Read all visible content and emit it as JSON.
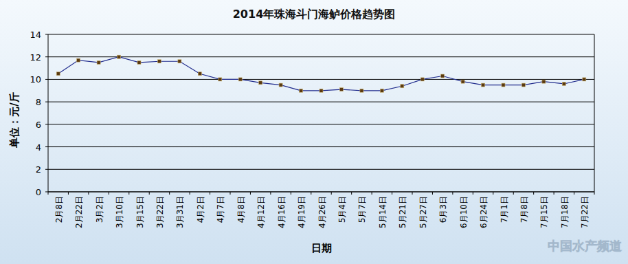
{
  "chart_data": {
    "type": "line",
    "title": "2014年珠海斗门海鲈价格趋势图",
    "x_label": "日期",
    "y_label": "单位：元/斤",
    "annotations": [
      "中国水产频道"
    ],
    "categories": [
      "2月8日",
      "2月22日",
      "3月2日",
      "3月10日",
      "3月15日",
      "3月22日",
      "3月31日",
      "4月2日",
      "4月7日",
      "4月8日",
      "4月12日",
      "4月16日",
      "4月19日",
      "4月26日",
      "5月4日",
      "5月7日",
      "5月14日",
      "5月21日",
      "5月27日",
      "6月3日",
      "6月10日",
      "6月24日",
      "7月1日",
      "7月8日",
      "7月15日",
      "7月18日",
      "7月22日"
    ],
    "series": [
      {
        "name": "海鲈价格",
        "color": "#1f2a8c",
        "marker": "square",
        "values": [
          10.5,
          11.7,
          11.5,
          12.0,
          11.5,
          11.6,
          11.6,
          10.5,
          10.0,
          10.0,
          9.7,
          9.5,
          9.0,
          9.0,
          9.1,
          9.0,
          9.0,
          9.4,
          10.0,
          10.3,
          9.8,
          9.5,
          9.5,
          9.5,
          9.8,
          9.6,
          10.0
        ]
      }
    ],
    "ylim": [
      0,
      14
    ],
    "yticks": [
      0,
      2,
      4,
      6,
      8,
      10,
      12,
      14
    ],
    "grid": true
  }
}
